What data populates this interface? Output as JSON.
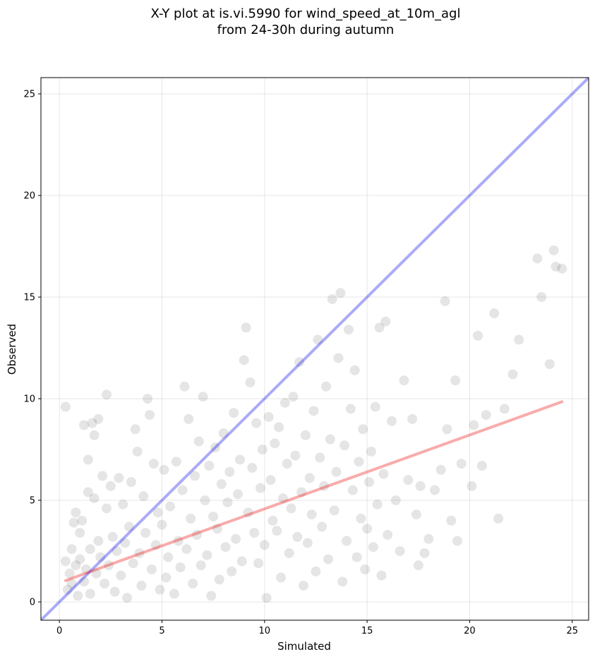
{
  "chart_data": {
    "type": "scatter",
    "title_lines": [
      "X-Y plot at is.vi.5990 for wind_speed_at_10m_agl",
      "from 24-30h during autumn"
    ],
    "xlabel": "Simulated",
    "ylabel": "Observed",
    "xlim": [
      -0.9,
      25.8
    ],
    "ylim": [
      -0.9,
      25.8
    ],
    "xticks": [
      0,
      5,
      10,
      15,
      20,
      25
    ],
    "yticks": [
      0,
      5,
      10,
      15,
      20,
      25
    ],
    "grid": true,
    "point_color": "#000000",
    "point_alpha": 0.1,
    "series": [
      {
        "points": [
          [
            0.3,
            9.6
          ],
          [
            0.3,
            2.0
          ],
          [
            0.4,
            0.6
          ],
          [
            0.5,
            1.4
          ],
          [
            0.6,
            2.6
          ],
          [
            0.6,
            0.9
          ],
          [
            0.7,
            3.9
          ],
          [
            0.8,
            4.4
          ],
          [
            0.8,
            1.8
          ],
          [
            0.9,
            0.3
          ],
          [
            1.0,
            2.1
          ],
          [
            1.0,
            3.4
          ],
          [
            1.1,
            4.0
          ],
          [
            1.2,
            1.0
          ],
          [
            1.2,
            8.7
          ],
          [
            1.3,
            1.6
          ],
          [
            1.4,
            5.4
          ],
          [
            1.4,
            7.0
          ],
          [
            1.5,
            2.6
          ],
          [
            1.5,
            0.4
          ],
          [
            1.6,
            8.8
          ],
          [
            1.7,
            8.2
          ],
          [
            1.7,
            5.1
          ],
          [
            1.8,
            1.4
          ],
          [
            1.9,
            9.0
          ],
          [
            1.9,
            3.0
          ],
          [
            2.0,
            2.2
          ],
          [
            2.1,
            6.2
          ],
          [
            2.2,
            0.9
          ],
          [
            2.3,
            4.6
          ],
          [
            2.3,
            10.2
          ],
          [
            2.4,
            1.8
          ],
          [
            2.5,
            5.7
          ],
          [
            2.6,
            3.2
          ],
          [
            2.7,
            0.5
          ],
          [
            2.8,
            2.5
          ],
          [
            2.9,
            6.1
          ],
          [
            3.0,
            1.3
          ],
          [
            3.1,
            4.8
          ],
          [
            3.2,
            2.9
          ],
          [
            3.3,
            0.2
          ],
          [
            3.4,
            3.7
          ],
          [
            3.5,
            5.9
          ],
          [
            3.6,
            1.9
          ],
          [
            3.7,
            8.5
          ],
          [
            3.8,
            7.4
          ],
          [
            3.9,
            2.4
          ],
          [
            4.0,
            0.8
          ],
          [
            4.1,
            5.2
          ],
          [
            4.2,
            3.4
          ],
          [
            4.3,
            10.0
          ],
          [
            4.4,
            9.2
          ],
          [
            4.5,
            1.6
          ],
          [
            4.6,
            6.8
          ],
          [
            4.7,
            2.8
          ],
          [
            4.8,
            4.4
          ],
          [
            4.9,
            0.6
          ],
          [
            5.0,
            3.8
          ],
          [
            5.1,
            6.5
          ],
          [
            5.2,
            1.2
          ],
          [
            5.3,
            2.2
          ],
          [
            5.4,
            4.7
          ],
          [
            5.6,
            0.4
          ],
          [
            5.7,
            6.9
          ],
          [
            5.8,
            3.0
          ],
          [
            5.9,
            1.7
          ],
          [
            6.0,
            5.5
          ],
          [
            6.1,
            10.6
          ],
          [
            6.2,
            2.6
          ],
          [
            6.3,
            9.0
          ],
          [
            6.4,
            4.1
          ],
          [
            6.5,
            0.9
          ],
          [
            6.6,
            6.2
          ],
          [
            6.7,
            3.3
          ],
          [
            6.8,
            7.9
          ],
          [
            6.9,
            1.8
          ],
          [
            7.0,
            10.1
          ],
          [
            7.1,
            5.0
          ],
          [
            7.2,
            2.3
          ],
          [
            7.3,
            6.7
          ],
          [
            7.4,
            0.3
          ],
          [
            7.5,
            4.2
          ],
          [
            7.6,
            7.6
          ],
          [
            7.7,
            3.6
          ],
          [
            7.8,
            1.1
          ],
          [
            7.9,
            5.8
          ],
          [
            8.0,
            8.3
          ],
          [
            8.1,
            2.7
          ],
          [
            8.2,
            4.9
          ],
          [
            8.3,
            6.4
          ],
          [
            8.4,
            1.5
          ],
          [
            8.5,
            9.3
          ],
          [
            8.6,
            3.1
          ],
          [
            8.7,
            5.3
          ],
          [
            8.8,
            7.0
          ],
          [
            8.9,
            2.0
          ],
          [
            9.0,
            11.9
          ],
          [
            9.1,
            13.5
          ],
          [
            9.2,
            4.4
          ],
          [
            9.3,
            10.8
          ],
          [
            9.4,
            6.6
          ],
          [
            9.5,
            3.4
          ],
          [
            9.6,
            8.8
          ],
          [
            9.7,
            1.9
          ],
          [
            9.8,
            5.6
          ],
          [
            9.9,
            7.5
          ],
          [
            10.0,
            2.8
          ],
          [
            10.1,
            0.2
          ],
          [
            10.2,
            9.1
          ],
          [
            10.3,
            6.0
          ],
          [
            10.4,
            4.0
          ],
          [
            10.5,
            7.8
          ],
          [
            10.6,
            3.5
          ],
          [
            10.7,
            8.6
          ],
          [
            10.8,
            1.2
          ],
          [
            10.9,
            5.1
          ],
          [
            11.0,
            9.8
          ],
          [
            11.1,
            6.8
          ],
          [
            11.2,
            2.4
          ],
          [
            11.3,
            4.6
          ],
          [
            11.4,
            10.1
          ],
          [
            11.5,
            7.2
          ],
          [
            11.6,
            3.2
          ],
          [
            11.7,
            11.8
          ],
          [
            11.8,
            5.4
          ],
          [
            11.9,
            0.8
          ],
          [
            12.0,
            8.2
          ],
          [
            12.1,
            2.9
          ],
          [
            12.2,
            6.1
          ],
          [
            12.3,
            4.3
          ],
          [
            12.4,
            9.4
          ],
          [
            12.5,
            1.5
          ],
          [
            12.6,
            12.9
          ],
          [
            12.7,
            7.1
          ],
          [
            12.8,
            3.7
          ],
          [
            12.9,
            5.7
          ],
          [
            13.0,
            10.6
          ],
          [
            13.1,
            2.1
          ],
          [
            13.2,
            8.0
          ],
          [
            13.3,
            14.9
          ],
          [
            13.4,
            4.5
          ],
          [
            13.5,
            6.4
          ],
          [
            13.6,
            12.0
          ],
          [
            13.7,
            15.2
          ],
          [
            13.8,
            1.0
          ],
          [
            13.9,
            7.7
          ],
          [
            14.0,
            3.0
          ],
          [
            14.1,
            13.4
          ],
          [
            14.2,
            9.5
          ],
          [
            14.3,
            5.5
          ],
          [
            14.4,
            11.4
          ],
          [
            14.5,
            2.2
          ],
          [
            14.6,
            6.9
          ],
          [
            14.7,
            4.1
          ],
          [
            14.8,
            8.5
          ],
          [
            14.9,
            1.6
          ],
          [
            15.0,
            3.6
          ],
          [
            15.1,
            5.9
          ],
          [
            15.2,
            7.4
          ],
          [
            15.3,
            2.7
          ],
          [
            15.4,
            9.6
          ],
          [
            15.5,
            4.8
          ],
          [
            15.6,
            13.5
          ],
          [
            15.7,
            1.3
          ],
          [
            15.8,
            6.3
          ],
          [
            15.9,
            13.8
          ],
          [
            16.0,
            3.3
          ],
          [
            16.2,
            8.9
          ],
          [
            16.4,
            5.0
          ],
          [
            16.6,
            2.5
          ],
          [
            16.8,
            10.9
          ],
          [
            17.0,
            6.0
          ],
          [
            17.2,
            9.0
          ],
          [
            17.4,
            4.3
          ],
          [
            17.5,
            1.8
          ],
          [
            17.6,
            5.7
          ],
          [
            17.8,
            2.4
          ],
          [
            18.0,
            3.1
          ],
          [
            18.3,
            5.5
          ],
          [
            18.6,
            6.5
          ],
          [
            18.8,
            14.8
          ],
          [
            18.9,
            8.5
          ],
          [
            19.1,
            4.0
          ],
          [
            19.3,
            10.9
          ],
          [
            19.4,
            3.0
          ],
          [
            19.6,
            6.8
          ],
          [
            20.1,
            5.7
          ],
          [
            20.2,
            8.7
          ],
          [
            20.4,
            13.1
          ],
          [
            20.6,
            6.7
          ],
          [
            20.8,
            9.2
          ],
          [
            21.2,
            14.2
          ],
          [
            21.4,
            4.1
          ],
          [
            21.7,
            9.5
          ],
          [
            22.1,
            11.2
          ],
          [
            22.4,
            12.9
          ],
          [
            23.3,
            16.9
          ],
          [
            23.5,
            15.0
          ],
          [
            23.9,
            11.7
          ],
          [
            24.1,
            17.3
          ],
          [
            24.2,
            16.5
          ],
          [
            24.5,
            16.4
          ]
        ]
      }
    ],
    "reference_lines": [
      {
        "name": "1:1",
        "color": "#0000ee",
        "alpha": 0.33,
        "x": [
          -0.9,
          25.8
        ],
        "y": [
          -0.9,
          25.8
        ]
      },
      {
        "name": "fit",
        "color": "#ee0000",
        "alpha": 0.33,
        "x": [
          0.3,
          24.5
        ],
        "y": [
          1.05,
          9.85
        ]
      }
    ]
  }
}
